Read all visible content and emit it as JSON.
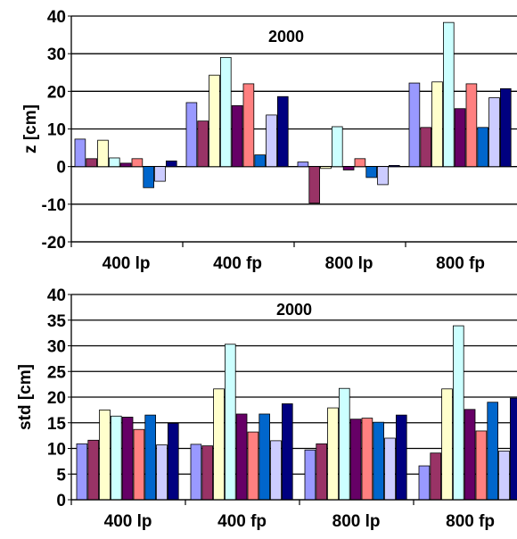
{
  "colors": [
    "#9999ff",
    "#993366",
    "#ffffcc",
    "#ccffff",
    "#660066",
    "#ff8080",
    "#0066cc",
    "#ccccff",
    "#000080"
  ],
  "chart_data": [
    {
      "type": "bar",
      "title": "2000",
      "ylabel": "z [cm]",
      "xlabel": "",
      "categories": [
        "400 lp",
        "400 fp",
        "800 lp",
        "800 fp"
      ],
      "ylim": [
        -20,
        40
      ],
      "yticks": [
        -20,
        -10,
        0,
        10,
        20,
        30,
        40
      ],
      "grid": true,
      "series": [
        {
          "values": [
            7.3,
            17.0,
            1.2,
            22.2
          ]
        },
        {
          "values": [
            2.1,
            12.1,
            -9.7,
            10.4
          ]
        },
        {
          "values": [
            7.0,
            24.3,
            -0.5,
            22.5
          ]
        },
        {
          "values": [
            2.3,
            29.0,
            10.6,
            38.3
          ]
        },
        {
          "values": [
            0.9,
            16.2,
            -0.9,
            15.4
          ]
        },
        {
          "values": [
            2.1,
            22.0,
            2.1,
            22.0
          ]
        },
        {
          "values": [
            -5.6,
            3.1,
            -2.9,
            10.4
          ]
        },
        {
          "values": [
            -3.9,
            13.7,
            -4.8,
            18.3
          ]
        },
        {
          "values": [
            1.5,
            18.6,
            0.3,
            20.7
          ]
        }
      ]
    },
    {
      "type": "bar",
      "title": "2000",
      "ylabel": "std [cm]",
      "xlabel": "",
      "categories": [
        "400 lp",
        "400 fp",
        "800 lp",
        "800 fp"
      ],
      "ylim": [
        0,
        40
      ],
      "yticks": [
        0,
        5,
        10,
        15,
        20,
        25,
        30,
        35,
        40
      ],
      "grid": true,
      "series": [
        {
          "values": [
            10.9,
            10.8,
            9.7,
            6.6
          ]
        },
        {
          "values": [
            11.6,
            10.5,
            10.9,
            9.1
          ]
        },
        {
          "values": [
            17.5,
            21.6,
            17.9,
            21.6
          ]
        },
        {
          "values": [
            16.3,
            30.3,
            21.7,
            33.9
          ]
        },
        {
          "values": [
            16.1,
            16.7,
            15.7,
            17.6
          ]
        },
        {
          "values": [
            13.7,
            13.2,
            15.9,
            13.4
          ]
        },
        {
          "values": [
            16.5,
            16.7,
            15.1,
            19.0
          ]
        },
        {
          "values": [
            10.7,
            11.5,
            12.0,
            9.5
          ]
        },
        {
          "values": [
            14.9,
            18.7,
            16.5,
            19.8
          ]
        }
      ]
    }
  ]
}
